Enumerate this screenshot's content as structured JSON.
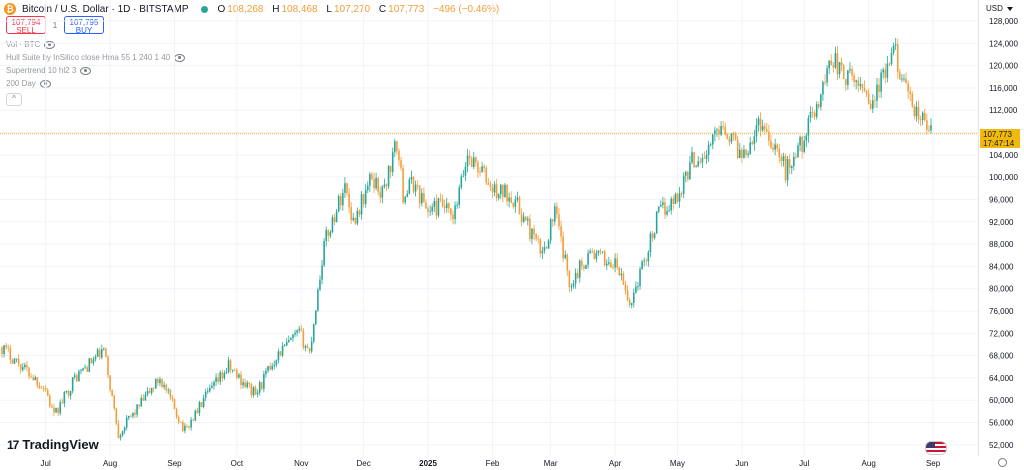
{
  "header": {
    "title": "Bitcoin / U.S. Dollar · 1D · BITSTAMP",
    "coin_glyph": "₿",
    "ohlc": [
      {
        "k": "O",
        "v": "108,268"
      },
      {
        "k": "H",
        "v": "108,468"
      },
      {
        "k": "L",
        "v": "107,270"
      },
      {
        "k": "C",
        "v": "107,773"
      }
    ],
    "change": "−496 (−0.46%)"
  },
  "trade": {
    "sell_price": "107,794",
    "sell_label": "SELL",
    "spread": "1",
    "buy_price": "107,795",
    "buy_label": "BUY"
  },
  "indicators": [
    "Vol · BTC",
    "Hull Suite by InSilico close Hma 55 1 240 1 40",
    "Supertrend 10 hl2 3",
    "200 Day"
  ],
  "collapse_glyph": "^",
  "currency": "USD",
  "price_label": {
    "price": "107,773",
    "countdown": "17:47:14"
  },
  "brand": {
    "logo": "TradingView",
    "mark": "17"
  },
  "colors": {
    "up": "#26a69a",
    "down": "#f29d38",
    "last": "#f0b90b",
    "grid": "#f0f3fa",
    "axis_text": "#131722"
  },
  "chart_data": {
    "type": "line",
    "title": "Bitcoin / U.S. Dollar · 1D · BITSTAMP",
    "xlabel": "",
    "ylabel": "",
    "ylim": [
      50000,
      128000
    ],
    "y_ticks": [
      52000,
      56000,
      60000,
      64000,
      68000,
      72000,
      76000,
      80000,
      84000,
      88000,
      92000,
      96000,
      100000,
      104000,
      108000,
      112000,
      116000,
      120000,
      124000,
      128000
    ],
    "y_tick_labels": [
      "52,000",
      "56,000",
      "60,000",
      "64,000",
      "68,000",
      "72,000",
      "76,000",
      "80,000",
      "84,000",
      "88,000",
      "92,000",
      "96,000",
      "100,000",
      "104,000",
      "108,000",
      "112,000",
      "116,000",
      "120,000",
      "124,000",
      "128,000"
    ],
    "x_labels": [
      "Jul",
      "Aug",
      "Sep",
      "Oct",
      "Nov",
      "Dec",
      "2025",
      "Feb",
      "Mar",
      "Apr",
      "May",
      "Jun",
      "Jul",
      "Aug",
      "Sep"
    ],
    "x_label_dates": [
      "2024-07-01",
      "2024-08-01",
      "2024-09-01",
      "2024-10-01",
      "2024-11-01",
      "2024-12-01",
      "2025-01-01",
      "2025-02-01",
      "2025-03-01",
      "2025-04-01",
      "2025-05-01",
      "2025-06-01",
      "2025-07-01",
      "2025-08-01",
      "2025-09-01"
    ],
    "date_range": [
      "2024-06-10",
      "2025-08-31"
    ],
    "last_price": 107773,
    "series": [
      {
        "x": [
          "2024-06-10",
          "2024-06-20",
          "2024-07-01",
          "2024-07-05",
          "2024-07-15",
          "2024-07-29",
          "2024-08-05",
          "2024-08-15",
          "2024-08-25",
          "2024-09-06",
          "2024-09-15",
          "2024-09-27",
          "2024-10-10",
          "2024-10-20",
          "2024-10-31",
          "2024-11-05",
          "2024-11-12",
          "2024-11-22",
          "2024-11-26",
          "2024-12-05",
          "2024-12-10",
          "2024-12-17",
          "2024-12-20",
          "2024-12-25",
          "2025-01-01",
          "2025-01-08",
          "2025-01-13",
          "2025-01-20",
          "2025-01-27",
          "2025-02-01",
          "2025-02-10",
          "2025-02-25",
          "2025-03-03",
          "2025-03-10",
          "2025-03-20",
          "2025-04-02",
          "2025-04-08",
          "2025-04-15",
          "2025-04-22",
          "2025-05-01",
          "2025-05-08",
          "2025-05-15",
          "2025-05-22",
          "2025-06-01",
          "2025-06-10",
          "2025-06-18",
          "2025-06-22",
          "2025-07-01",
          "2025-07-10",
          "2025-07-14",
          "2025-07-20",
          "2025-07-31",
          "2025-08-02",
          "2025-08-14",
          "2025-08-20",
          "2025-08-31"
        ],
        "values": [
          69500,
          66000,
          62000,
          57000,
          64000,
          69000,
          54000,
          59000,
          64000,
          54500,
          60000,
          66000,
          61000,
          68000,
          72000,
          68500,
          88000,
          98500,
          92000,
          100000,
          97000,
          106000,
          97000,
          99000,
          94000,
          95000,
          92000,
          104000,
          101000,
          97500,
          97000,
          86000,
          94000,
          81000,
          86500,
          84000,
          77000,
          85000,
          93500,
          96500,
          103000,
          104000,
          110000,
          104000,
          110000,
          105000,
          101000,
          107000,
          116000,
          122000,
          118000,
          116000,
          113000,
          122500,
          113500,
          108000
        ]
      }
    ]
  }
}
